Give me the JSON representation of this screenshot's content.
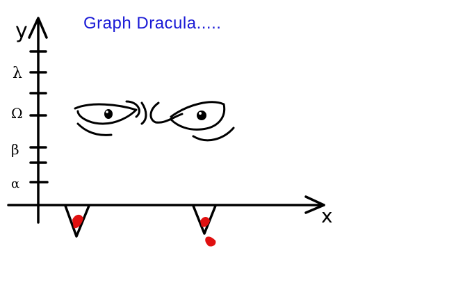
{
  "title": "Graph Dracula.....",
  "axes": {
    "y_label": "y",
    "x_label": "x",
    "y_ticks": [
      "α",
      "β",
      "Ω",
      "λ"
    ]
  },
  "colors": {
    "title": "#1a1ad6",
    "ink": "#000000",
    "blood": "#e01010",
    "background": "#ffffff"
  }
}
